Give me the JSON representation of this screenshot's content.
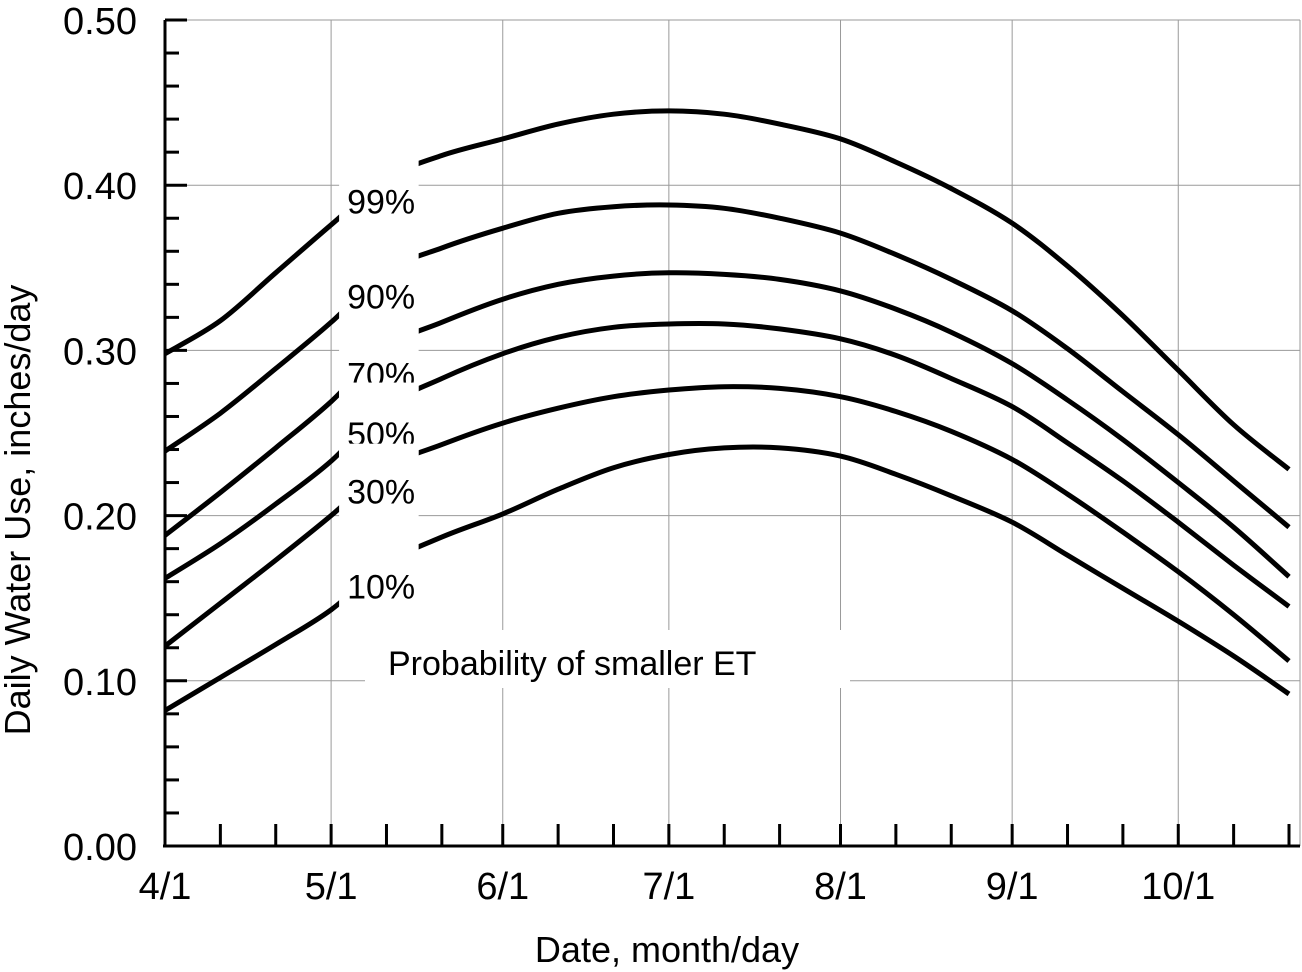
{
  "chart_data": {
    "type": "line",
    "title": "",
    "xlabel": "Date, month/day",
    "ylabel": "Daily Water Use, inches/day",
    "ylim": [
      0,
      0.5
    ],
    "xlim": [
      "04-01",
      "10-21"
    ],
    "x_ticks": [
      "4/1",
      "5/1",
      "6/1",
      "7/1",
      "8/1",
      "9/1",
      "10/1"
    ],
    "y_ticks": [
      "0.00",
      "0.10",
      "0.20",
      "0.30",
      "0.40",
      "0.50"
    ],
    "grid": true,
    "annotation": "Probability of smaller ET",
    "label_gap": {
      "start": "05-01",
      "end": "05-06"
    },
    "series": [
      {
        "name": "99%",
        "x": [
          "04-01",
          "04-11",
          "04-21",
          "05-01",
          "05-11",
          "05-21",
          "06-01",
          "06-11",
          "06-21",
          "07-01",
          "07-11",
          "07-21",
          "08-01",
          "08-11",
          "08-21",
          "09-01",
          "09-11",
          "09-21",
          "10-01",
          "10-11",
          "10-21"
        ],
        "y": [
          0.298,
          0.318,
          0.347,
          0.376,
          0.404,
          0.418,
          0.428,
          0.437,
          0.443,
          0.445,
          0.443,
          0.437,
          0.428,
          0.414,
          0.398,
          0.377,
          0.351,
          0.321,
          0.288,
          0.255,
          0.228
        ]
      },
      {
        "name": "90%",
        "x": [
          "04-01",
          "04-11",
          "04-21",
          "05-01",
          "05-11",
          "05-21",
          "06-01",
          "06-11",
          "06-21",
          "07-01",
          "07-11",
          "07-21",
          "08-01",
          "08-11",
          "08-21",
          "09-01",
          "09-11",
          "09-21",
          "10-01",
          "10-11",
          "10-21"
        ],
        "y": [
          0.239,
          0.262,
          0.289,
          0.317,
          0.348,
          0.362,
          0.374,
          0.383,
          0.387,
          0.388,
          0.386,
          0.38,
          0.371,
          0.358,
          0.343,
          0.324,
          0.301,
          0.275,
          0.249,
          0.221,
          0.193
        ]
      },
      {
        "name": "70%",
        "x": [
          "04-01",
          "04-11",
          "04-21",
          "05-01",
          "05-11",
          "05-21",
          "06-01",
          "06-11",
          "06-21",
          "07-01",
          "07-11",
          "07-21",
          "08-01",
          "08-11",
          "08-21",
          "09-01",
          "09-11",
          "09-21",
          "10-01",
          "10-11",
          "10-21"
        ],
        "y": [
          0.188,
          0.214,
          0.241,
          0.269,
          0.302,
          0.317,
          0.331,
          0.34,
          0.345,
          0.347,
          0.346,
          0.343,
          0.336,
          0.325,
          0.311,
          0.292,
          0.27,
          0.246,
          0.22,
          0.193,
          0.163
        ]
      },
      {
        "name": "50%",
        "x": [
          "04-01",
          "04-11",
          "04-21",
          "05-01",
          "05-11",
          "05-21",
          "06-01",
          "06-11",
          "06-21",
          "07-01",
          "07-11",
          "07-21",
          "08-01",
          "08-11",
          "08-21",
          "09-01",
          "09-11",
          "09-21",
          "10-01",
          "10-11",
          "10-21"
        ],
        "y": [
          0.162,
          0.183,
          0.207,
          0.233,
          0.266,
          0.283,
          0.298,
          0.308,
          0.314,
          0.316,
          0.316,
          0.313,
          0.307,
          0.297,
          0.283,
          0.266,
          0.244,
          0.221,
          0.196,
          0.17,
          0.145
        ]
      },
      {
        "name": "30%",
        "x": [
          "04-01",
          "04-11",
          "04-21",
          "05-01",
          "05-11",
          "05-21",
          "06-01",
          "06-11",
          "06-21",
          "07-01",
          "07-11",
          "07-21",
          "08-01",
          "08-11",
          "08-21",
          "09-01",
          "09-11",
          "09-21",
          "10-01",
          "10-11",
          "10-21"
        ],
        "y": [
          0.121,
          0.147,
          0.173,
          0.2,
          0.229,
          0.243,
          0.256,
          0.265,
          0.272,
          0.276,
          0.278,
          0.277,
          0.272,
          0.263,
          0.251,
          0.234,
          0.213,
          0.19,
          0.166,
          0.14,
          0.112
        ]
      },
      {
        "name": "10%",
        "x": [
          "04-01",
          "04-11",
          "04-21",
          "05-01",
          "05-11",
          "05-21",
          "06-01",
          "06-11",
          "06-21",
          "07-01",
          "07-11",
          "07-21",
          "08-01",
          "08-11",
          "08-21",
          "09-01",
          "09-11",
          "09-21",
          "10-01",
          "10-11",
          "10-21"
        ],
        "y": [
          0.082,
          0.102,
          0.122,
          0.143,
          0.171,
          0.187,
          0.201,
          0.216,
          0.229,
          0.237,
          0.241,
          0.241,
          0.236,
          0.225,
          0.212,
          0.196,
          0.176,
          0.156,
          0.136,
          0.115,
          0.092
        ]
      }
    ]
  }
}
